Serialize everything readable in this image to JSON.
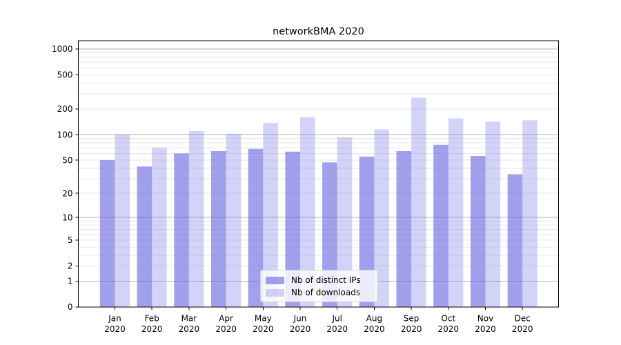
{
  "chart_data": {
    "type": "bar",
    "title": "networkBMA 2020",
    "categories": [
      "Jan 2020",
      "Feb 2020",
      "Mar 2020",
      "Apr 2020",
      "May 2020",
      "Jun 2020",
      "Jul 2020",
      "Aug 2020",
      "Sep 2020",
      "Oct 2020",
      "Nov 2020",
      "Dec 2020"
    ],
    "month_line1": [
      "Jan",
      "Feb",
      "Mar",
      "Apr",
      "May",
      "Jun",
      "Jul",
      "Aug",
      "Sep",
      "Oct",
      "Nov",
      "Dec"
    ],
    "month_line2": "2020",
    "series": [
      {
        "name": "Nb of distinct IPs",
        "color": "rgba(105,105,225,0.63)",
        "values": [
          50,
          42,
          60,
          64,
          68,
          63,
          47,
          55,
          64,
          76,
          56,
          34
        ]
      },
      {
        "name": "Nb of downloads",
        "color": "rgba(130,130,235,0.35)",
        "values": [
          100,
          70,
          110,
          102,
          137,
          160,
          93,
          115,
          270,
          155,
          142,
          147
        ]
      }
    ],
    "yscale": "symlog(1+v)",
    "yticks": [
      0,
      1,
      2,
      5,
      10,
      20,
      50,
      100,
      200,
      500,
      1000
    ],
    "ylim": [
      0,
      1235
    ],
    "xlabel": "",
    "ylabel": "",
    "grid": {
      "on": true,
      "major_color": "#b0b0b0",
      "minor_color": "#e7e7e7"
    },
    "spine_color": "#000000",
    "legend": {
      "position": "inside-bottom-center",
      "entries": [
        "Nb of distinct IPs",
        "Nb of downloads"
      ]
    }
  }
}
